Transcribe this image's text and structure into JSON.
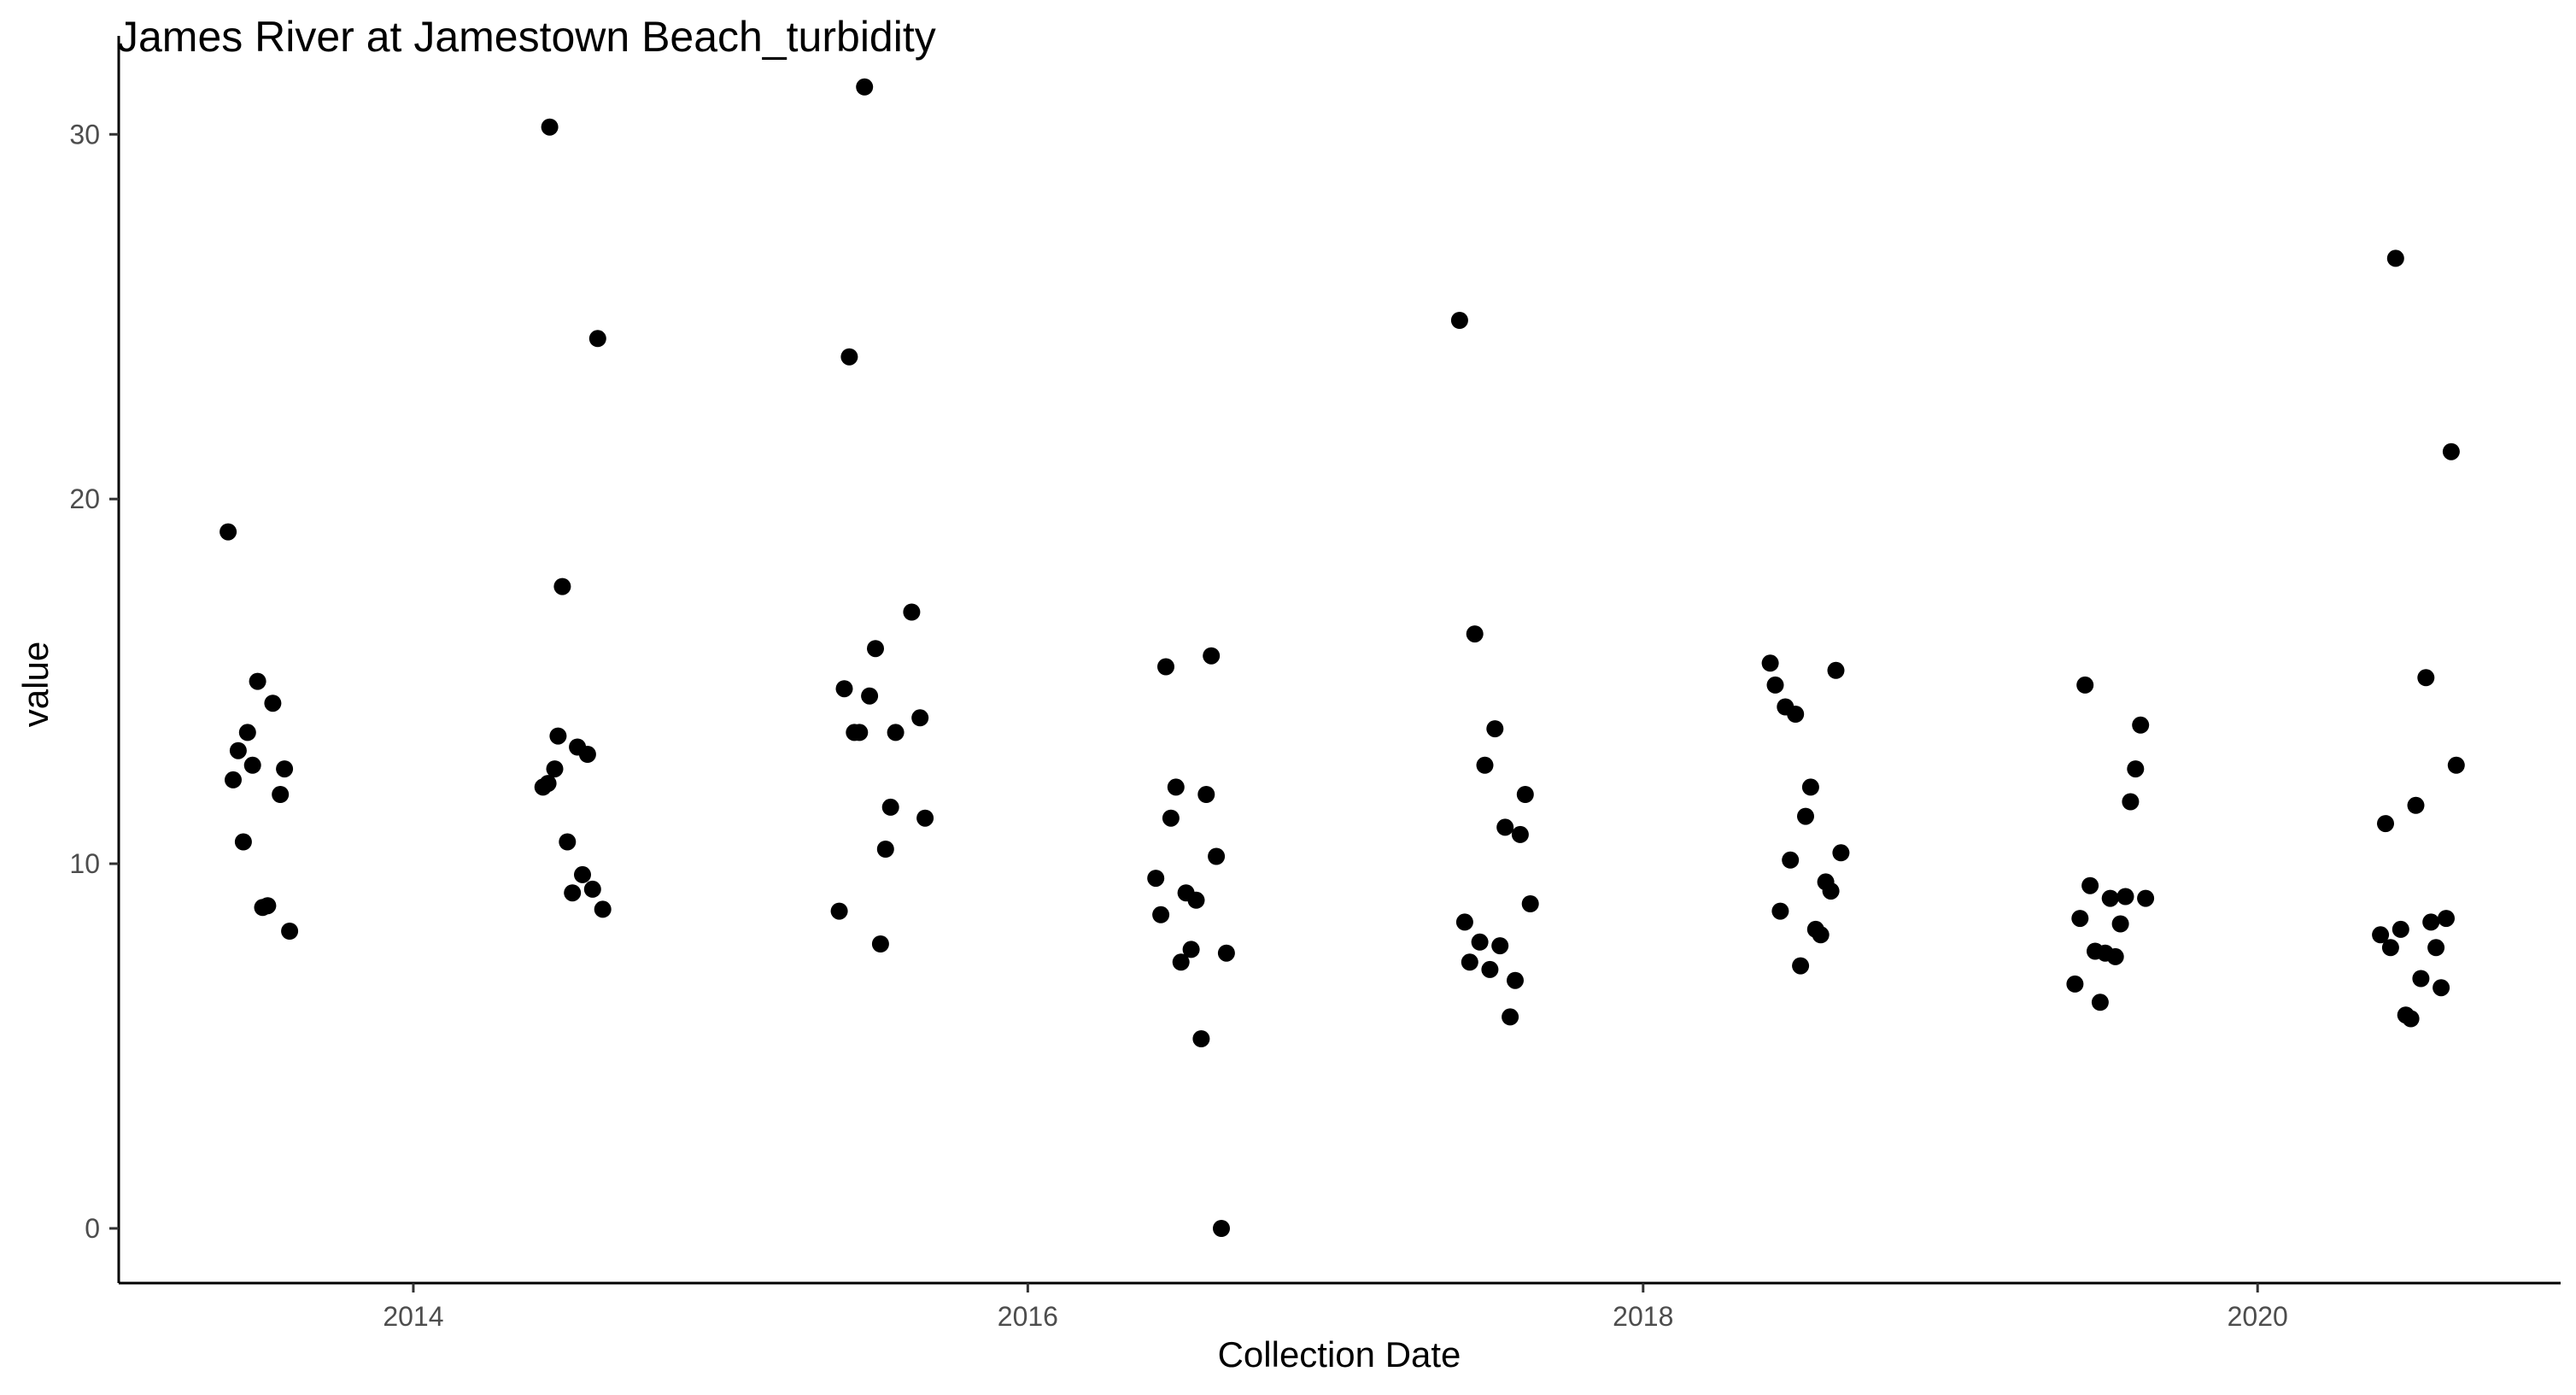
{
  "chart_data": {
    "type": "scatter",
    "title": "James River at Jamestown Beach_turbidity",
    "xlabel": "Collection Date",
    "ylabel": "value",
    "xlim": [
      "2013-01-16",
      "2020-12-26"
    ],
    "ylim": [
      -1.5,
      32.7
    ],
    "x_ticks": [
      "2014",
      "2016",
      "2018",
      "2020"
    ],
    "y_ticks": [
      "0",
      "10",
      "20",
      "30"
    ],
    "grid": false,
    "legend": "none",
    "point_color": "#000000",
    "points": [
      [
        "2013-05-26",
        19.1
      ],
      [
        "2013-06-01",
        12.3
      ],
      [
        "2013-06-07",
        13.1
      ],
      [
        "2013-06-13",
        10.6
      ],
      [
        "2013-06-18",
        13.6
      ],
      [
        "2013-06-24",
        12.7
      ],
      [
        "2013-06-30",
        15.0
      ],
      [
        "2013-07-06",
        8.8
      ],
      [
        "2013-07-12",
        8.85
      ],
      [
        "2013-07-18",
        14.4
      ],
      [
        "2013-07-27",
        11.9
      ],
      [
        "2013-08-01",
        12.6
      ],
      [
        "2013-08-07",
        8.15
      ],
      [
        "2014-06-04",
        12.1
      ],
      [
        "2014-06-10",
        12.2
      ],
      [
        "2014-06-12",
        30.2
      ],
      [
        "2014-06-18",
        12.6
      ],
      [
        "2014-06-22",
        13.5
      ],
      [
        "2014-06-27",
        17.6
      ],
      [
        "2014-07-03",
        10.6
      ],
      [
        "2014-07-09",
        9.2
      ],
      [
        "2014-07-15",
        13.2
      ],
      [
        "2014-07-21",
        9.7
      ],
      [
        "2014-07-27",
        13.0
      ],
      [
        "2014-08-02",
        9.3
      ],
      [
        "2014-08-08",
        24.4
      ],
      [
        "2014-08-14",
        8.75
      ],
      [
        "2015-05-22",
        8.7
      ],
      [
        "2015-05-28",
        14.8
      ],
      [
        "2015-06-03",
        23.9
      ],
      [
        "2015-06-09",
        13.6
      ],
      [
        "2015-06-15",
        13.6
      ],
      [
        "2015-06-21",
        31.3
      ],
      [
        "2015-06-27",
        14.6
      ],
      [
        "2015-07-04",
        15.9
      ],
      [
        "2015-07-10",
        7.8
      ],
      [
        "2015-07-16",
        10.4
      ],
      [
        "2015-07-22",
        11.55
      ],
      [
        "2015-07-28",
        13.6
      ],
      [
        "2015-08-16",
        16.9
      ],
      [
        "2015-08-26",
        14.0
      ],
      [
        "2015-09-01",
        11.25
      ],
      [
        "2016-06-01",
        9.6
      ],
      [
        "2016-06-07",
        8.6
      ],
      [
        "2016-06-13",
        15.4
      ],
      [
        "2016-06-19",
        11.25
      ],
      [
        "2016-06-25",
        12.1
      ],
      [
        "2016-07-01",
        7.3
      ],
      [
        "2016-07-07",
        9.2
      ],
      [
        "2016-07-13",
        7.65
      ],
      [
        "2016-07-19",
        9.0
      ],
      [
        "2016-07-25",
        5.2
      ],
      [
        "2016-07-31",
        11.9
      ],
      [
        "2016-08-06",
        15.7
      ],
      [
        "2016-08-12",
        10.2
      ],
      [
        "2016-08-18",
        0.0
      ],
      [
        "2016-08-24",
        7.55
      ],
      [
        "2017-05-28",
        24.9
      ],
      [
        "2017-06-03",
        8.4
      ],
      [
        "2017-06-09",
        7.3
      ],
      [
        "2017-06-15",
        16.3
      ],
      [
        "2017-06-21",
        7.85
      ],
      [
        "2017-06-27",
        12.7
      ],
      [
        "2017-07-03",
        7.1
      ],
      [
        "2017-07-09",
        13.7
      ],
      [
        "2017-07-15",
        7.75
      ],
      [
        "2017-07-21",
        11.0
      ],
      [
        "2017-07-27",
        5.8
      ],
      [
        "2017-08-02",
        6.8
      ],
      [
        "2017-08-08",
        10.8
      ],
      [
        "2017-08-14",
        11.9
      ],
      [
        "2017-08-20",
        8.9
      ],
      [
        "2018-06-01",
        15.5
      ],
      [
        "2018-06-07",
        14.9
      ],
      [
        "2018-06-13",
        8.7
      ],
      [
        "2018-06-19",
        14.3
      ],
      [
        "2018-06-25",
        10.1
      ],
      [
        "2018-07-01",
        14.1
      ],
      [
        "2018-07-07",
        7.2
      ],
      [
        "2018-07-13",
        11.3
      ],
      [
        "2018-07-19",
        12.1
      ],
      [
        "2018-07-25",
        8.2
      ],
      [
        "2018-07-31",
        8.05
      ],
      [
        "2018-08-06",
        9.5
      ],
      [
        "2018-08-12",
        9.25
      ],
      [
        "2018-08-18",
        15.3
      ],
      [
        "2018-08-24",
        10.3
      ],
      [
        "2019-05-29",
        6.7
      ],
      [
        "2019-06-04",
        8.5
      ],
      [
        "2019-06-10",
        14.9
      ],
      [
        "2019-06-16",
        9.4
      ],
      [
        "2019-06-22",
        7.6
      ],
      [
        "2019-06-28",
        6.2
      ],
      [
        "2019-07-04",
        7.55
      ],
      [
        "2019-07-10",
        9.05
      ],
      [
        "2019-07-16",
        7.45
      ],
      [
        "2019-07-22",
        8.35
      ],
      [
        "2019-07-28",
        9.1
      ],
      [
        "2019-08-03",
        11.7
      ],
      [
        "2019-08-09",
        12.6
      ],
      [
        "2019-08-15",
        13.8
      ],
      [
        "2019-08-21",
        9.05
      ],
      [
        "2020-05-26",
        8.05
      ],
      [
        "2020-06-01",
        11.1
      ],
      [
        "2020-06-07",
        7.7
      ],
      [
        "2020-06-13",
        26.6
      ],
      [
        "2020-06-19",
        8.2
      ],
      [
        "2020-06-25",
        5.85
      ],
      [
        "2020-07-01",
        5.75
      ],
      [
        "2020-07-07",
        11.6
      ],
      [
        "2020-07-13",
        6.85
      ],
      [
        "2020-07-19",
        15.1
      ],
      [
        "2020-07-25",
        8.4
      ],
      [
        "2020-07-31",
        7.7
      ],
      [
        "2020-08-06",
        6.6
      ],
      [
        "2020-08-12",
        8.5
      ],
      [
        "2020-08-18",
        21.3
      ],
      [
        "2020-08-24",
        12.7
      ]
    ]
  }
}
